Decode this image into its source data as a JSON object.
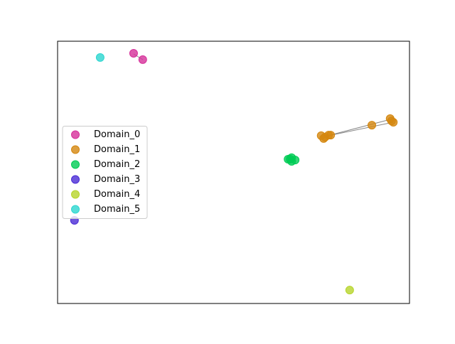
{
  "chart_data": {
    "type": "scatter",
    "xlim": [
      0,
      100
    ],
    "ylim": [
      0,
      100
    ],
    "legend": "center left",
    "series": [
      {
        "name": "Domain_0",
        "color": "#d6309a",
        "x": [
          21.6,
          24.2
        ],
        "values": [
          95.4,
          93.0
        ]
      },
      {
        "name": "Domain_1",
        "color": "#d4870f",
        "x": [
          74.9,
          76.0,
          77.0,
          75.6,
          77.6,
          89.3,
          94.5,
          94.9,
          95.4
        ],
        "values": [
          64.0,
          63.4,
          64.2,
          62.9,
          64.2,
          68.0,
          70.5,
          69.6,
          69.1
        ]
      },
      {
        "name": "Domain_2",
        "color": "#00cc55",
        "x": [
          65.5,
          66.5,
          67.5,
          66.5,
          66.1
        ],
        "values": [
          55.0,
          55.6,
          54.7,
          54.2,
          55.0
        ]
      },
      {
        "name": "Domain_3",
        "color": "#4a2bd6",
        "x": [
          4.8
        ],
        "values": [
          31.7
        ]
      },
      {
        "name": "Domain_4",
        "color": "#b6d42a",
        "x": [
          83.0
        ],
        "values": [
          5.1
        ]
      },
      {
        "name": "Domain_5",
        "color": "#2cd6d0",
        "x": [
          12.1
        ],
        "values": [
          93.8
        ]
      }
    ]
  }
}
